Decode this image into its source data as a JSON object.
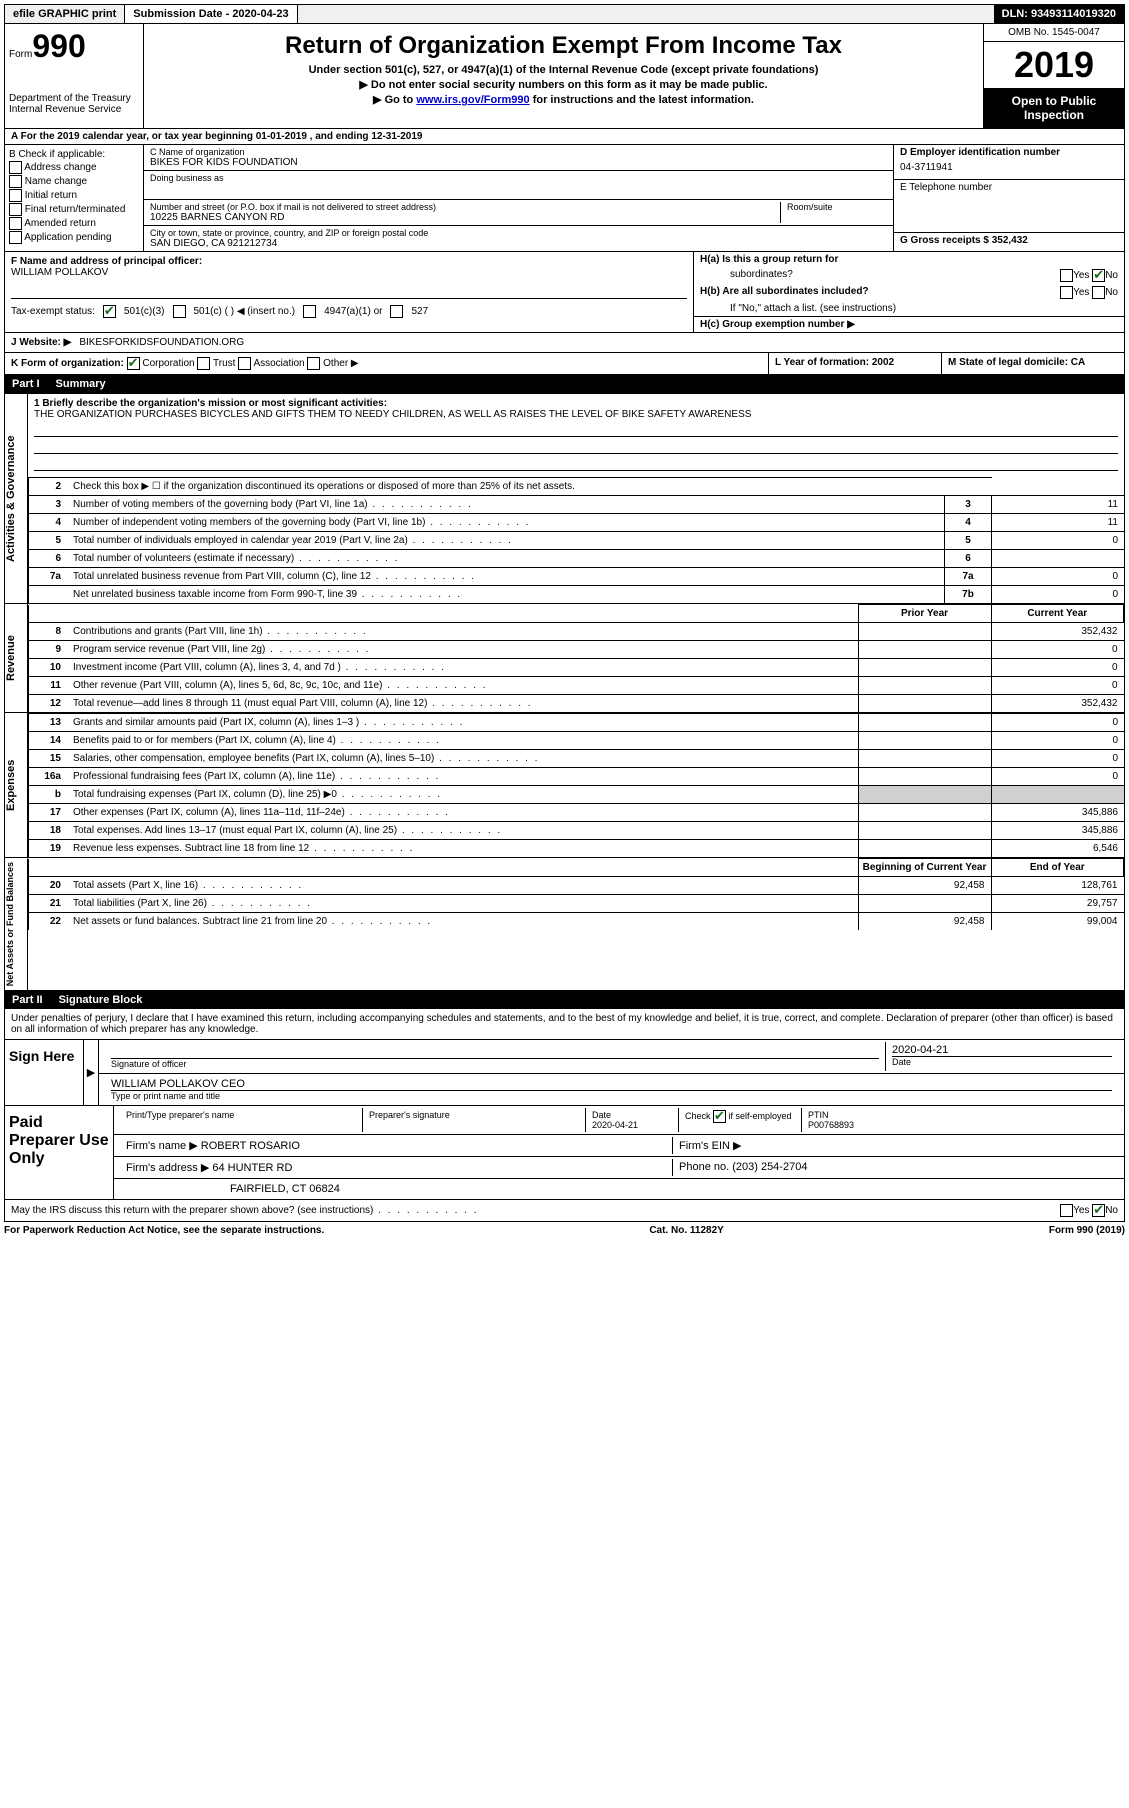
{
  "colors": {
    "black": "#000000",
    "white": "#ffffff",
    "grey": "#d0d0d0",
    "link": "#0000cc",
    "check": "#1a6b1a"
  },
  "topbar": {
    "efile": "efile GRAPHIC print",
    "sub_label": "Submission Date - 2020-04-23",
    "dln": "DLN: 93493114019320"
  },
  "header": {
    "form_word": "Form",
    "form_no": "990",
    "dept": "Department of the Treasury\nInternal Revenue Service",
    "title": "Return of Organization Exempt From Income Tax",
    "sub": "Under section 501(c), 527, or 4947(a)(1) of the Internal Revenue Code (except private foundations)",
    "line1": "▶ Do not enter social security numbers on this form as it may be made public.",
    "line2_pre": "▶ Go to ",
    "line2_link": "www.irs.gov/Form990",
    "line2_post": " for instructions and the latest information.",
    "omb": "OMB No. 1545-0047",
    "year": "2019",
    "open": "Open to Public Inspection"
  },
  "rowA": "A For the 2019 calendar year, or tax year beginning 01-01-2019   , and ending 12-31-2019",
  "colB": {
    "label": "B Check if applicable:",
    "opts": [
      "Address change",
      "Name change",
      "Initial return",
      "Final return/terminated",
      "Amended return",
      "Application pending"
    ]
  },
  "colC": {
    "name_label": "C Name of organization",
    "name": "BIKES FOR KIDS FOUNDATION",
    "dba_label": "Doing business as",
    "addr_label": "Number and street (or P.O. box if mail is not delivered to street address)",
    "room_label": "Room/suite",
    "addr": "10225 BARNES CANYON RD",
    "city_label": "City or town, state or province, country, and ZIP or foreign postal code",
    "city": "SAN DIEGO, CA  921212734"
  },
  "colD": {
    "ein_label": "D Employer identification number",
    "ein": "04-3711941",
    "phone_label": "E Telephone number",
    "gross_label": "G Gross receipts $ 352,432"
  },
  "colF": {
    "label": "F  Name and address of principal officer:",
    "name": "WILLIAM POLLAKOV"
  },
  "colH": {
    "ha": "H(a)  Is this a group return for",
    "ha2": "subordinates?",
    "hb": "H(b)  Are all subordinates included?",
    "hb2": "If \"No,\" attach a list. (see instructions)",
    "hc": "H(c)  Group exemption number ▶",
    "yes": "Yes",
    "no": "No"
  },
  "rowI": {
    "label": "Tax-exempt status:",
    "o1": "501(c)(3)",
    "o2": "501(c) (  ) ◀ (insert no.)",
    "o3": "4947(a)(1) or",
    "o4": "527"
  },
  "rowJ": {
    "label": "J   Website: ▶",
    "val": "BIKESFORKIDSFOUNDATION.ORG"
  },
  "rowK": {
    "label": "K Form of organization:",
    "o1": "Corporation",
    "o2": "Trust",
    "o3": "Association",
    "o4": "Other ▶",
    "l_label": "L Year of formation: 2002",
    "m_label": "M State of legal domicile: CA"
  },
  "part1": {
    "no": "Part I",
    "title": "Summary"
  },
  "side": {
    "act": "Activities & Governance",
    "rev": "Revenue",
    "exp": "Expenses",
    "net": "Net Assets or Fund Balances"
  },
  "mission": {
    "label": "1  Briefly describe the organization's mission or most significant activities:",
    "text": "THE ORGANIZATION PURCHASES BICYCLES AND GIFTS THEM TO NEEDY CHILDREN, AS WELL AS RAISES THE LEVEL OF BIKE SAFETY AWARENESS"
  },
  "line2": "Check this box ▶ ☐ if the organization discontinued its operations or disposed of more than 25% of its net assets.",
  "lines_small": [
    {
      "n": "3",
      "t": "Number of voting members of the governing body (Part VI, line 1a)",
      "box": "3",
      "v": "11"
    },
    {
      "n": "4",
      "t": "Number of independent voting members of the governing body (Part VI, line 1b)",
      "box": "4",
      "v": "11"
    },
    {
      "n": "5",
      "t": "Total number of individuals employed in calendar year 2019 (Part V, line 2a)",
      "box": "5",
      "v": "0"
    },
    {
      "n": "6",
      "t": "Total number of volunteers (estimate if necessary)",
      "box": "6",
      "v": ""
    },
    {
      "n": "7a",
      "t": "Total unrelated business revenue from Part VIII, column (C), line 12",
      "box": "7a",
      "v": "0"
    },
    {
      "n": "",
      "t": "Net unrelated business taxable income from Form 990-T, line 39",
      "box": "7b",
      "v": "0"
    }
  ],
  "col_headers": {
    "prior": "Prior Year",
    "current": "Current Year",
    "boy": "Beginning of Current Year",
    "eoy": "End of Year"
  },
  "rev": [
    {
      "n": "8",
      "t": "Contributions and grants (Part VIII, line 1h)",
      "p": "",
      "c": "352,432"
    },
    {
      "n": "9",
      "t": "Program service revenue (Part VIII, line 2g)",
      "p": "",
      "c": "0"
    },
    {
      "n": "10",
      "t": "Investment income (Part VIII, column (A), lines 3, 4, and 7d )",
      "p": "",
      "c": "0"
    },
    {
      "n": "11",
      "t": "Other revenue (Part VIII, column (A), lines 5, 6d, 8c, 9c, 10c, and 11e)",
      "p": "",
      "c": "0"
    },
    {
      "n": "12",
      "t": "Total revenue—add lines 8 through 11 (must equal Part VIII, column (A), line 12)",
      "p": "",
      "c": "352,432"
    }
  ],
  "exp": [
    {
      "n": "13",
      "t": "Grants and similar amounts paid (Part IX, column (A), lines 1–3 )",
      "p": "",
      "c": "0"
    },
    {
      "n": "14",
      "t": "Benefits paid to or for members (Part IX, column (A), line 4)",
      "p": "",
      "c": "0"
    },
    {
      "n": "15",
      "t": "Salaries, other compensation, employee benefits (Part IX, column (A), lines 5–10)",
      "p": "",
      "c": "0"
    },
    {
      "n": "16a",
      "t": "Professional fundraising fees (Part IX, column (A), line 11e)",
      "p": "",
      "c": "0"
    },
    {
      "n": "b",
      "t": "Total fundraising expenses (Part IX, column (D), line 25) ▶0",
      "p": "grey",
      "c": "grey"
    },
    {
      "n": "17",
      "t": "Other expenses (Part IX, column (A), lines 11a–11d, 11f–24e)",
      "p": "",
      "c": "345,886"
    },
    {
      "n": "18",
      "t": "Total expenses. Add lines 13–17 (must equal Part IX, column (A), line 25)",
      "p": "",
      "c": "345,886"
    },
    {
      "n": "19",
      "t": "Revenue less expenses. Subtract line 18 from line 12",
      "p": "",
      "c": "6,546"
    }
  ],
  "net": [
    {
      "n": "20",
      "t": "Total assets (Part X, line 16)",
      "p": "92,458",
      "c": "128,761"
    },
    {
      "n": "21",
      "t": "Total liabilities (Part X, line 26)",
      "p": "",
      "c": "29,757"
    },
    {
      "n": "22",
      "t": "Net assets or fund balances. Subtract line 21 from line 20",
      "p": "92,458",
      "c": "99,004"
    }
  ],
  "part2": {
    "no": "Part II",
    "title": "Signature Block"
  },
  "sig_decl": "Under penalties of perjury, I declare that I have examined this return, including accompanying schedules and statements, and to the best of my knowledge and belief, it is true, correct, and complete. Declaration of preparer (other than officer) is based on all information of which preparer has any knowledge.",
  "sign": {
    "here": "Sign Here",
    "sig_officer": "Signature of officer",
    "date": "2020-04-21",
    "date_label": "Date",
    "name": "WILLIAM POLLAKOV  CEO",
    "name_label": "Type or print name and title"
  },
  "paid": {
    "label": "Paid Preparer Use Only",
    "h1": "Print/Type preparer's name",
    "h2": "Preparer's signature",
    "h3": "Date",
    "h3v": "2020-04-21",
    "h4": "Check ☑ if self-employed",
    "h5": "PTIN",
    "h5v": "P00768893",
    "firm_label": "Firm's name    ▶",
    "firm": "ROBERT ROSARIO",
    "ein_label": "Firm's EIN ▶",
    "addr_label": "Firm's address ▶",
    "addr": "64 HUNTER RD",
    "addr2": "FAIRFIELD, CT  06824",
    "phone_label": "Phone no. (203) 254-2704"
  },
  "discuss": "May the IRS discuss this return with the preparer shown above? (see instructions)",
  "footer": {
    "left": "For Paperwork Reduction Act Notice, see the separate instructions.",
    "mid": "Cat. No. 11282Y",
    "right": "Form 990 (2019)"
  }
}
